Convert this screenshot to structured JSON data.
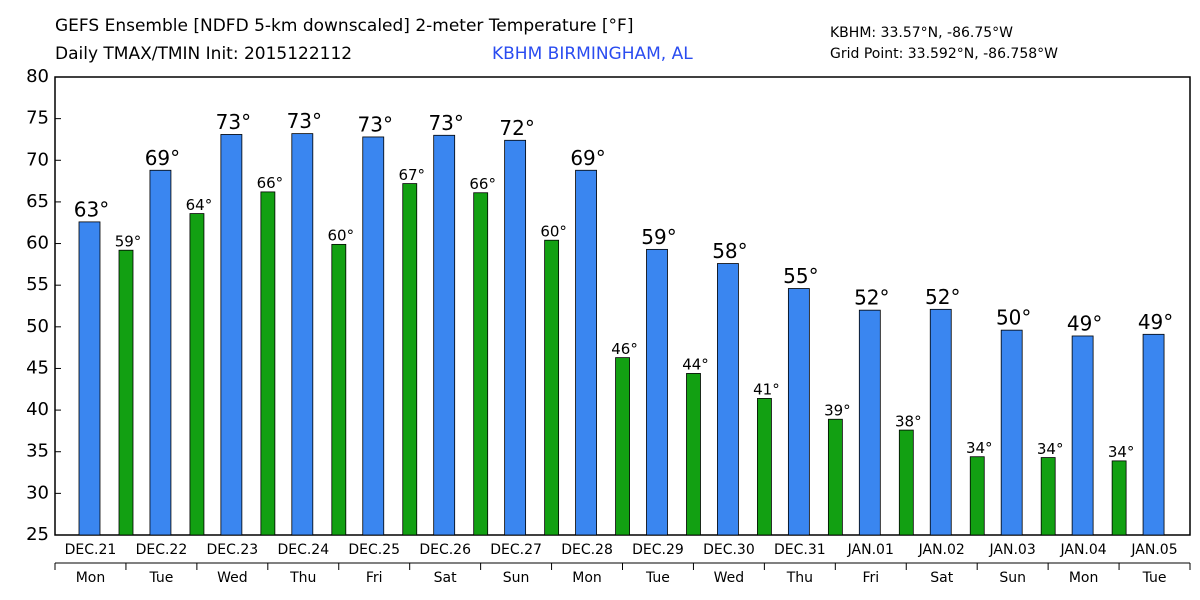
{
  "chart_data": {
    "type": "bar",
    "title": "GEFS Ensemble [NDFD 5-km downscaled] 2-meter Temperature [°F]",
    "subtitle": "Daily TMAX/TMIN Init: 2015122112",
    "station": "KBHM BIRMINGHAM, AL",
    "station_coords": "KBHM: 33.57°N, -86.75°W",
    "grid_point": "Grid Point: 33.592°N, -86.758°W",
    "categories": [
      "DEC.21",
      "DEC.22",
      "DEC.23",
      "DEC.24",
      "DEC.25",
      "DEC.26",
      "DEC.27",
      "DEC.28",
      "DEC.29",
      "DEC.30",
      "DEC.31",
      "JAN.01",
      "JAN.02",
      "JAN.03",
      "JAN.04",
      "JAN.05"
    ],
    "weekdays": [
      "Mon",
      "Tue",
      "Wed",
      "Thu",
      "Fri",
      "Sat",
      "Sun",
      "Mon",
      "Tue",
      "Wed",
      "Thu",
      "Fri",
      "Sat",
      "Sun",
      "Mon",
      "Tue"
    ],
    "series": [
      {
        "color": "#3a86f0",
        "values": [
          62.6,
          68.8,
          73.1,
          73.2,
          72.8,
          73.0,
          72.4,
          68.8,
          59.3,
          57.6,
          54.6,
          52.0,
          52.1,
          49.6,
          48.9,
          49.1
        ],
        "value_labels": [
          "63°",
          "69°",
          "73°",
          "73°",
          "73°",
          "73°",
          "72°",
          "69°",
          "59°",
          "58°",
          "55°",
          "52°",
          "52°",
          "50°",
          "49°",
          "49°"
        ]
      },
      {
        "color": "#12a012",
        "values": [
          59.2,
          63.6,
          66.2,
          59.9,
          67.2,
          66.1,
          60.4,
          46.3,
          44.4,
          41.4,
          38.9,
          37.6,
          34.4,
          34.3,
          33.9,
          null
        ],
        "value_labels": [
          "59°",
          "64°",
          "66°",
          "60°",
          "67°",
          "66°",
          "60°",
          "46°",
          "44°",
          "41°",
          "39°",
          "38°",
          "34°",
          "34°",
          "34°",
          null
        ]
      }
    ],
    "ylim": [
      25,
      80
    ],
    "yticks": [
      25,
      30,
      35,
      40,
      45,
      50,
      55,
      60,
      65,
      70,
      75,
      80
    ],
    "grid": false
  }
}
